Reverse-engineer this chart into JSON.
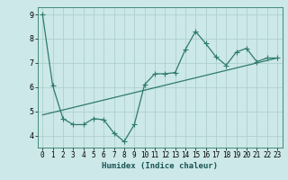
{
  "xlabel": "Humidex (Indice chaleur)",
  "bg_color": "#cce8e8",
  "line_color": "#2e7b6b",
  "grid_color": "#b0d0d0",
  "xlim": [
    -0.5,
    23.5
  ],
  "ylim": [
    3.5,
    9.3
  ],
  "xticks": [
    0,
    1,
    2,
    3,
    4,
    5,
    6,
    7,
    8,
    9,
    10,
    11,
    12,
    13,
    14,
    15,
    16,
    17,
    18,
    19,
    20,
    21,
    22,
    23
  ],
  "yticks": [
    4,
    5,
    6,
    7,
    8,
    9
  ],
  "data_x": [
    0,
    1,
    2,
    3,
    4,
    5,
    6,
    7,
    8,
    9,
    10,
    11,
    12,
    13,
    14,
    15,
    16,
    17,
    18,
    19,
    20,
    21,
    22,
    23
  ],
  "data_y": [
    9.0,
    6.05,
    4.7,
    4.45,
    4.45,
    4.7,
    4.65,
    4.1,
    3.75,
    4.45,
    6.1,
    6.55,
    6.55,
    6.6,
    7.55,
    8.3,
    7.8,
    7.25,
    6.9,
    7.45,
    7.6,
    7.05,
    7.2,
    7.2
  ],
  "trend_x": [
    0,
    23
  ],
  "trend_y": [
    4.85,
    7.2
  ],
  "marker_size": 2.5,
  "line_width": 0.9,
  "tick_fontsize": 5.5,
  "xlabel_fontsize": 6.5
}
